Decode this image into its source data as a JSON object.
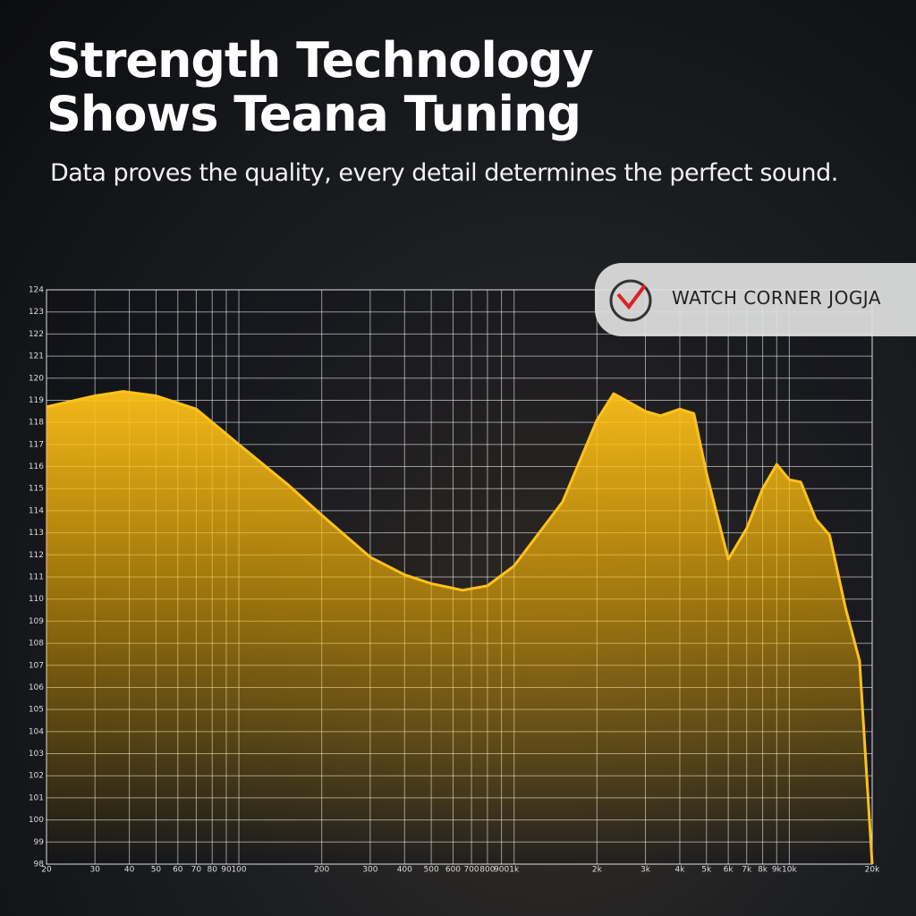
{
  "title": "Strength Technology Shows Teana Tuning",
  "subtitle": "Data proves the quality, every detail determines the perfect sound.",
  "watermark": "WATCH CORNER JOGJA",
  "chart_data": {
    "type": "area",
    "xscale": "log",
    "grid": true,
    "color": "#ffc21a",
    "x": [
      20,
      30,
      38,
      50,
      70,
      100,
      150,
      200,
      300,
      400,
      500,
      650,
      800,
      1000,
      1500,
      2000,
      2300,
      3000,
      3400,
      4000,
      4500,
      5000,
      6000,
      7000,
      8000,
      9000,
      10000,
      11000,
      12500,
      14000,
      16000,
      18000,
      20000
    ],
    "values": [
      118.7,
      119.2,
      119.4,
      119.2,
      118.6,
      117.0,
      115.2,
      113.8,
      111.9,
      111.1,
      110.7,
      110.4,
      110.6,
      111.5,
      114.4,
      118.1,
      119.3,
      118.5,
      118.3,
      118.6,
      118.4,
      115.7,
      111.8,
      113.2,
      115.0,
      116.1,
      115.4,
      115.3,
      113.6,
      112.9,
      109.6,
      107.2,
      98.0
    ],
    "xlim": [
      20,
      20000
    ],
    "ylim": [
      98,
      124
    ],
    "xticks": [
      20,
      30,
      40,
      50,
      60,
      70,
      80,
      90,
      100,
      200,
      300,
      400,
      500,
      600,
      700,
      800,
      900,
      {
        "value": 1000,
        "label": "1k"
      },
      {
        "value": 2000,
        "label": "2k"
      },
      {
        "value": 3000,
        "label": "3k"
      },
      {
        "value": 4000,
        "label": "4k"
      },
      {
        "value": 5000,
        "label": "5k"
      },
      {
        "value": 6000,
        "label": "6k"
      },
      {
        "value": 7000,
        "label": "7k"
      },
      {
        "value": 8000,
        "label": "8k"
      },
      {
        "value": 9000,
        "label": "9k"
      },
      {
        "value": 10000,
        "label": "10k"
      },
      {
        "value": 20000,
        "label": "20k"
      }
    ],
    "yticks": [
      98,
      99,
      100,
      101,
      102,
      103,
      104,
      105,
      106,
      107,
      108,
      109,
      110,
      111,
      112,
      113,
      114,
      115,
      116,
      117,
      118,
      119,
      120,
      121,
      122,
      123,
      124
    ]
  }
}
